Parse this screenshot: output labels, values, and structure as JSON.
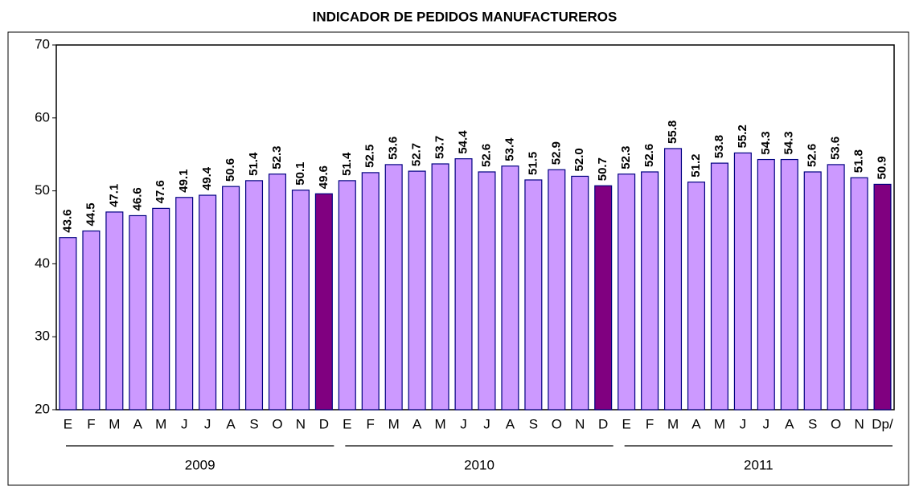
{
  "chart_data": {
    "type": "bar",
    "title": "INDICADOR DE PEDIDOS MANUFACTUREROS",
    "categories": [
      "E",
      "F",
      "M",
      "A",
      "M",
      "J",
      "J",
      "A",
      "S",
      "O",
      "N",
      "D",
      "E",
      "F",
      "M",
      "A",
      "M",
      "J",
      "J",
      "A",
      "S",
      "O",
      "N",
      "D",
      "E",
      "F",
      "M",
      "A",
      "M",
      "J",
      "J",
      "A",
      "S",
      "O",
      "N",
      "Dp/"
    ],
    "values": [
      43.6,
      44.5,
      47.1,
      46.6,
      47.6,
      49.1,
      49.4,
      50.6,
      51.4,
      52.3,
      50.1,
      49.6,
      51.4,
      52.5,
      53.6,
      52.7,
      53.7,
      54.4,
      52.6,
      53.4,
      51.5,
      52.9,
      52.0,
      50.7,
      52.3,
      52.6,
      55.8,
      51.2,
      53.8,
      55.2,
      54.3,
      54.3,
      52.6,
      53.6,
      51.8,
      50.9
    ],
    "value_labels": [
      "43.6",
      "44.5",
      "47.1",
      "46.6",
      "47.6",
      "49.1",
      "49.4",
      "50.6",
      "51.4",
      "52.3",
      "50.1",
      "49.6",
      "51.4",
      "52.5",
      "53.6",
      "52.7",
      "53.7",
      "54.4",
      "52.6",
      "53.4",
      "51.5",
      "52.9",
      "52.0",
      "50.7",
      "52.3",
      "52.6",
      "55.8",
      "51.2",
      "53.8",
      "55.2",
      "54.3",
      "54.3",
      "52.6",
      "53.6",
      "51.8",
      "50.9"
    ],
    "colors": [
      "#cc99ff",
      "#cc99ff",
      "#cc99ff",
      "#cc99ff",
      "#cc99ff",
      "#cc99ff",
      "#cc99ff",
      "#cc99ff",
      "#cc99ff",
      "#cc99ff",
      "#cc99ff",
      "#800080",
      "#cc99ff",
      "#cc99ff",
      "#cc99ff",
      "#cc99ff",
      "#cc99ff",
      "#cc99ff",
      "#cc99ff",
      "#cc99ff",
      "#cc99ff",
      "#cc99ff",
      "#cc99ff",
      "#800080",
      "#cc99ff",
      "#cc99ff",
      "#cc99ff",
      "#cc99ff",
      "#cc99ff",
      "#cc99ff",
      "#cc99ff",
      "#cc99ff",
      "#cc99ff",
      "#cc99ff",
      "#cc99ff",
      "#800080"
    ],
    "groups": [
      {
        "label": "2009",
        "categories": 12
      },
      {
        "label": "2010",
        "categories": 12
      },
      {
        "label": "2011",
        "categories": 12
      }
    ],
    "ylim": [
      20,
      70
    ],
    "yticks": [
      20,
      30,
      40,
      50,
      60,
      70
    ],
    "grid": false
  }
}
